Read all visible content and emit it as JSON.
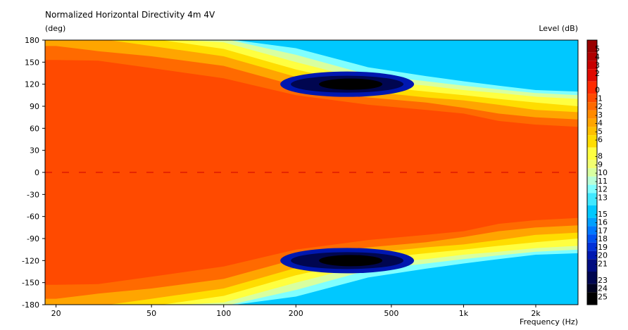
{
  "chart_data": {
    "type": "heatmap",
    "title": "Normalized Horizontal Directivity 4m 4V",
    "ylabel": "(deg)",
    "xlabel": "Frequency  (Hz)",
    "colorbar_label": "Level  (dB)",
    "x_scale": "log",
    "xlim": [
      18,
      3000
    ],
    "ylim": [
      -180,
      180
    ],
    "x_ticks": [
      {
        "value": 20,
        "label": "20"
      },
      {
        "value": 50,
        "label": "50"
      },
      {
        "value": 100,
        "label": "100"
      },
      {
        "value": 200,
        "label": "200"
      },
      {
        "value": 500,
        "label": "500"
      },
      {
        "value": 1000,
        "label": "1k"
      },
      {
        "value": 2000,
        "label": "2k"
      }
    ],
    "y_ticks": [
      180,
      150,
      120,
      90,
      60,
      30,
      0,
      -30,
      -60,
      -90,
      -120,
      -150,
      -180
    ],
    "colorbar": {
      "range": [
        -26,
        6
      ],
      "levels": [
        {
          "value": 5,
          "label": "5",
          "color": "#990000"
        },
        {
          "value": 4,
          "label": "4",
          "color": "#b00000"
        },
        {
          "value": 3,
          "label": "3",
          "color": "#c80000"
        },
        {
          "value": 2,
          "label": "2",
          "color": "#e00a00"
        },
        {
          "value": 0,
          "label": "0",
          "color": "#ff2a00"
        },
        {
          "value": -1,
          "label": "-1",
          "color": "#ff4a00"
        },
        {
          "value": -2,
          "label": "-2",
          "color": "#ff6a00"
        },
        {
          "value": -3,
          "label": "-3",
          "color": "#ff8a00"
        },
        {
          "value": -4,
          "label": "-4",
          "color": "#ffa500"
        },
        {
          "value": -5,
          "label": "-5",
          "color": "#ffc000"
        },
        {
          "value": -6,
          "label": "-6",
          "color": "#ffdd00"
        },
        {
          "value": -8,
          "label": "-8",
          "color": "#ffff40"
        },
        {
          "value": -9,
          "label": "-9",
          "color": "#f2ff70"
        },
        {
          "value": -10,
          "label": "-10",
          "color": "#d8ffa0"
        },
        {
          "value": -11,
          "label": "-11",
          "color": "#b8ffd8"
        },
        {
          "value": -12,
          "label": "-12",
          "color": "#80ffff"
        },
        {
          "value": -13,
          "label": "-13",
          "color": "#40e8ff"
        },
        {
          "value": -15,
          "label": "-15",
          "color": "#00c8ff"
        },
        {
          "value": -16,
          "label": "-16",
          "color": "#00a0ff"
        },
        {
          "value": -17,
          "label": "-17",
          "color": "#0078ff"
        },
        {
          "value": -18,
          "label": "-18",
          "color": "#0050f0"
        },
        {
          "value": -19,
          "label": "-19",
          "color": "#0030d8"
        },
        {
          "value": -20,
          "label": "-20",
          "color": "#0018b0"
        },
        {
          "value": -21,
          "label": "-21",
          "color": "#000c80"
        },
        {
          "value": -23,
          "label": "-23",
          "color": "#000650"
        },
        {
          "value": -24,
          "label": "-24",
          "color": "#000220"
        },
        {
          "value": -25,
          "label": "-25",
          "color": "#000000"
        }
      ]
    },
    "iso_contours": [
      {
        "level": -2,
        "angle_by_freq": [
          [
            20,
            153
          ],
          [
            30,
            152
          ],
          [
            50,
            142
          ],
          [
            100,
            128
          ],
          [
            200,
            105
          ],
          [
            400,
            92
          ],
          [
            700,
            85
          ],
          [
            1000,
            80
          ],
          [
            1400,
            70
          ],
          [
            2000,
            65
          ],
          [
            3000,
            62
          ]
        ]
      },
      {
        "level": -4,
        "angle_by_freq": [
          [
            20,
            172
          ],
          [
            30,
            165
          ],
          [
            50,
            158
          ],
          [
            100,
            145
          ],
          [
            200,
            118
          ],
          [
            400,
            102
          ],
          [
            700,
            95
          ],
          [
            1000,
            88
          ],
          [
            1400,
            80
          ],
          [
            2000,
            75
          ],
          [
            3000,
            72
          ]
        ]
      },
      {
        "level": -6,
        "angle_by_freq": [
          [
            20,
            182
          ],
          [
            30,
            182
          ],
          [
            50,
            172
          ],
          [
            100,
            158
          ],
          [
            200,
            130
          ],
          [
            400,
            110
          ],
          [
            700,
            102
          ],
          [
            1000,
            98
          ],
          [
            1400,
            92
          ],
          [
            2000,
            85
          ],
          [
            3000,
            82
          ]
        ]
      },
      {
        "level": -8,
        "angle_by_freq": [
          [
            20,
            182
          ],
          [
            30,
            182
          ],
          [
            50,
            182
          ],
          [
            100,
            168
          ],
          [
            200,
            140
          ],
          [
            400,
            118
          ],
          [
            700,
            110
          ],
          [
            1000,
            105
          ],
          [
            1400,
            100
          ],
          [
            2000,
            95
          ],
          [
            3000,
            90
          ]
        ]
      },
      {
        "level": -10,
        "angle_by_freq": [
          [
            20,
            182
          ],
          [
            30,
            182
          ],
          [
            50,
            182
          ],
          [
            100,
            177
          ],
          [
            200,
            150
          ],
          [
            400,
            125
          ],
          [
            700,
            118
          ],
          [
            1000,
            112
          ],
          [
            1400,
            108
          ],
          [
            2000,
            103
          ],
          [
            3000,
            100
          ]
        ]
      },
      {
        "level": -12,
        "angle_by_freq": [
          [
            20,
            182
          ],
          [
            30,
            182
          ],
          [
            50,
            182
          ],
          [
            100,
            182
          ],
          [
            200,
            160
          ],
          [
            400,
            133
          ],
          [
            700,
            124
          ],
          [
            1000,
            118
          ],
          [
            1400,
            113
          ],
          [
            2000,
            108
          ],
          [
            3000,
            105
          ]
        ]
      },
      {
        "level": -15,
        "angle_by_freq": [
          [
            20,
            182
          ],
          [
            30,
            182
          ],
          [
            50,
            182
          ],
          [
            100,
            182
          ],
          [
            200,
            169
          ],
          [
            400,
            143
          ],
          [
            700,
            131
          ],
          [
            1000,
            124
          ],
          [
            1400,
            118
          ],
          [
            2000,
            112
          ],
          [
            3000,
            110
          ]
        ]
      }
    ],
    "minima": [
      {
        "freq": 350,
        "angle": 120,
        "level": -25
      },
      {
        "freq": 350,
        "angle": -120,
        "level": -25
      }
    ]
  }
}
